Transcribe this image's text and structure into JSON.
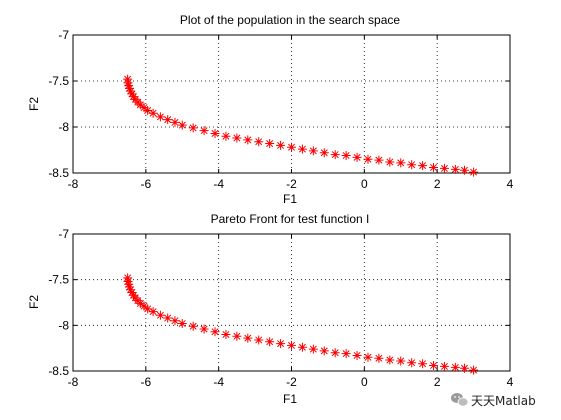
{
  "chart_data": [
    {
      "type": "scatter",
      "title": "Plot of the population in the search space",
      "xlabel": "F1",
      "ylabel": "F2",
      "xlim": [
        -8,
        4
      ],
      "ylim": [
        -8.5,
        -7
      ],
      "xticks": [
        -8,
        -6,
        -4,
        -2,
        0,
        2,
        4
      ],
      "yticks": [
        -7,
        -7.5,
        -8,
        -8.5
      ],
      "xtick_labels": [
        "-8",
        "-6",
        "-4",
        "-2",
        "0",
        "2",
        "4"
      ],
      "ytick_labels": [
        "-7",
        "-7.5",
        "-8",
        "-8.5"
      ],
      "grid": true,
      "marker": "asterisk",
      "color": "#ff0000",
      "series": [
        {
          "x": [
            -6.5,
            -6.49,
            -6.47,
            -6.45,
            -6.42,
            -6.38,
            -6.34,
            -6.29,
            -6.22,
            -6.15,
            -6.05,
            -5.95,
            -5.8,
            -5.6,
            -5.4,
            -5.2,
            -5.0,
            -4.7,
            -4.4,
            -4.1,
            -3.8,
            -3.5,
            -3.2,
            -2.9,
            -2.6,
            -2.3,
            -2.0,
            -1.7,
            -1.4,
            -1.1,
            -0.8,
            -0.5,
            -0.2,
            0.1,
            0.4,
            0.7,
            1.0,
            1.3,
            1.6,
            1.9,
            2.2,
            2.5,
            2.75,
            3.0
          ],
          "y": [
            -7.48,
            -7.52,
            -7.55,
            -7.58,
            -7.61,
            -7.64,
            -7.67,
            -7.7,
            -7.73,
            -7.76,
            -7.79,
            -7.82,
            -7.85,
            -7.89,
            -7.92,
            -7.95,
            -7.98,
            -8.01,
            -8.04,
            -8.07,
            -8.1,
            -8.12,
            -8.14,
            -8.16,
            -8.18,
            -8.2,
            -8.22,
            -8.24,
            -8.26,
            -8.28,
            -8.3,
            -8.31,
            -8.33,
            -8.35,
            -8.36,
            -8.38,
            -8.39,
            -8.41,
            -8.42,
            -8.44,
            -8.45,
            -8.46,
            -8.47,
            -8.49
          ]
        }
      ]
    },
    {
      "type": "scatter",
      "title": "Pareto Front for test function I",
      "xlabel": "F1",
      "ylabel": "F2",
      "xlim": [
        -8,
        4
      ],
      "ylim": [
        -8.5,
        -7
      ],
      "xticks": [
        -8,
        -6,
        -4,
        -2,
        0,
        2,
        4
      ],
      "yticks": [
        -7,
        -7.5,
        -8,
        -8.5
      ],
      "xtick_labels": [
        "-8",
        "-6",
        "-4",
        "-2",
        "0",
        "2",
        "4"
      ],
      "ytick_labels": [
        "-7",
        "-7.5",
        "-8",
        "-8.5"
      ],
      "grid": true,
      "marker": "asterisk",
      "color": "#ff0000",
      "series": [
        {
          "x": [
            -6.5,
            -6.49,
            -6.47,
            -6.45,
            -6.42,
            -6.38,
            -6.34,
            -6.29,
            -6.22,
            -6.15,
            -6.05,
            -5.95,
            -5.8,
            -5.6,
            -5.4,
            -5.2,
            -5.0,
            -4.7,
            -4.4,
            -4.1,
            -3.8,
            -3.5,
            -3.2,
            -2.9,
            -2.6,
            -2.3,
            -2.0,
            -1.7,
            -1.4,
            -1.1,
            -0.8,
            -0.5,
            -0.2,
            0.1,
            0.4,
            0.7,
            1.0,
            1.3,
            1.6,
            1.9,
            2.2,
            2.5,
            2.75,
            3.0
          ],
          "y": [
            -7.48,
            -7.52,
            -7.55,
            -7.58,
            -7.61,
            -7.64,
            -7.67,
            -7.7,
            -7.73,
            -7.76,
            -7.79,
            -7.82,
            -7.85,
            -7.89,
            -7.92,
            -7.95,
            -7.98,
            -8.01,
            -8.04,
            -8.07,
            -8.1,
            -8.12,
            -8.14,
            -8.16,
            -8.18,
            -8.2,
            -8.22,
            -8.24,
            -8.26,
            -8.28,
            -8.3,
            -8.31,
            -8.33,
            -8.35,
            -8.36,
            -8.38,
            -8.39,
            -8.41,
            -8.42,
            -8.44,
            -8.45,
            -8.46,
            -8.47,
            -8.49
          ]
        }
      ]
    }
  ],
  "watermark": {
    "text": "天天Matlab",
    "icon": "wechat-icon"
  }
}
